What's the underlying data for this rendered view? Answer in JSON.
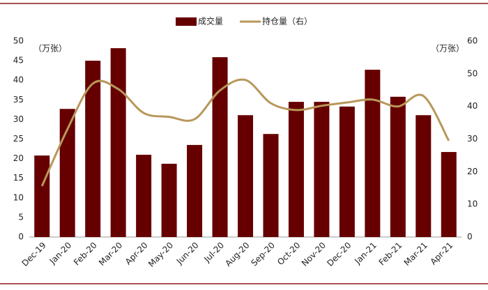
{
  "chart_data": {
    "type": "bar-line",
    "categories": [
      "Dec-19",
      "Jan-20",
      "Feb-20",
      "Mar-20",
      "Apr-20",
      "May-20",
      "Jun-20",
      "Jul-20",
      "Aug-20",
      "Sep-20",
      "Oct-20",
      "Nov-20",
      "Dec-20",
      "Jan-21",
      "Feb-21",
      "Mar-21",
      "Apr-21"
    ],
    "series": [
      {
        "name": "成交量",
        "type": "bar",
        "color": "#660000",
        "values": [
          20.8,
          32.7,
          45.0,
          48.2,
          21.0,
          18.7,
          23.5,
          45.9,
          31.1,
          26.3,
          34.5,
          34.5,
          33.3,
          42.7,
          35.8,
          31.1,
          21.7
        ]
      },
      {
        "name": "持仓量（右）",
        "type": "line",
        "axis": "y2",
        "color": "#b8975a",
        "values": [
          15.6,
          33,
          47,
          45.3,
          38,
          36.8,
          36.1,
          44.9,
          48.1,
          41,
          38.9,
          40.2,
          41.2,
          42.1,
          40,
          43.2,
          29.5
        ]
      }
    ],
    "y_unit": "（万张）",
    "y2_unit": "（万张）",
    "ylim": [
      0,
      50
    ],
    "yticks": [
      0,
      5,
      10,
      15,
      20,
      25,
      30,
      35,
      40,
      45,
      50
    ],
    "y2lim": [
      0,
      60
    ],
    "y2ticks": [
      0,
      10,
      20,
      30,
      40,
      50,
      60
    ]
  }
}
